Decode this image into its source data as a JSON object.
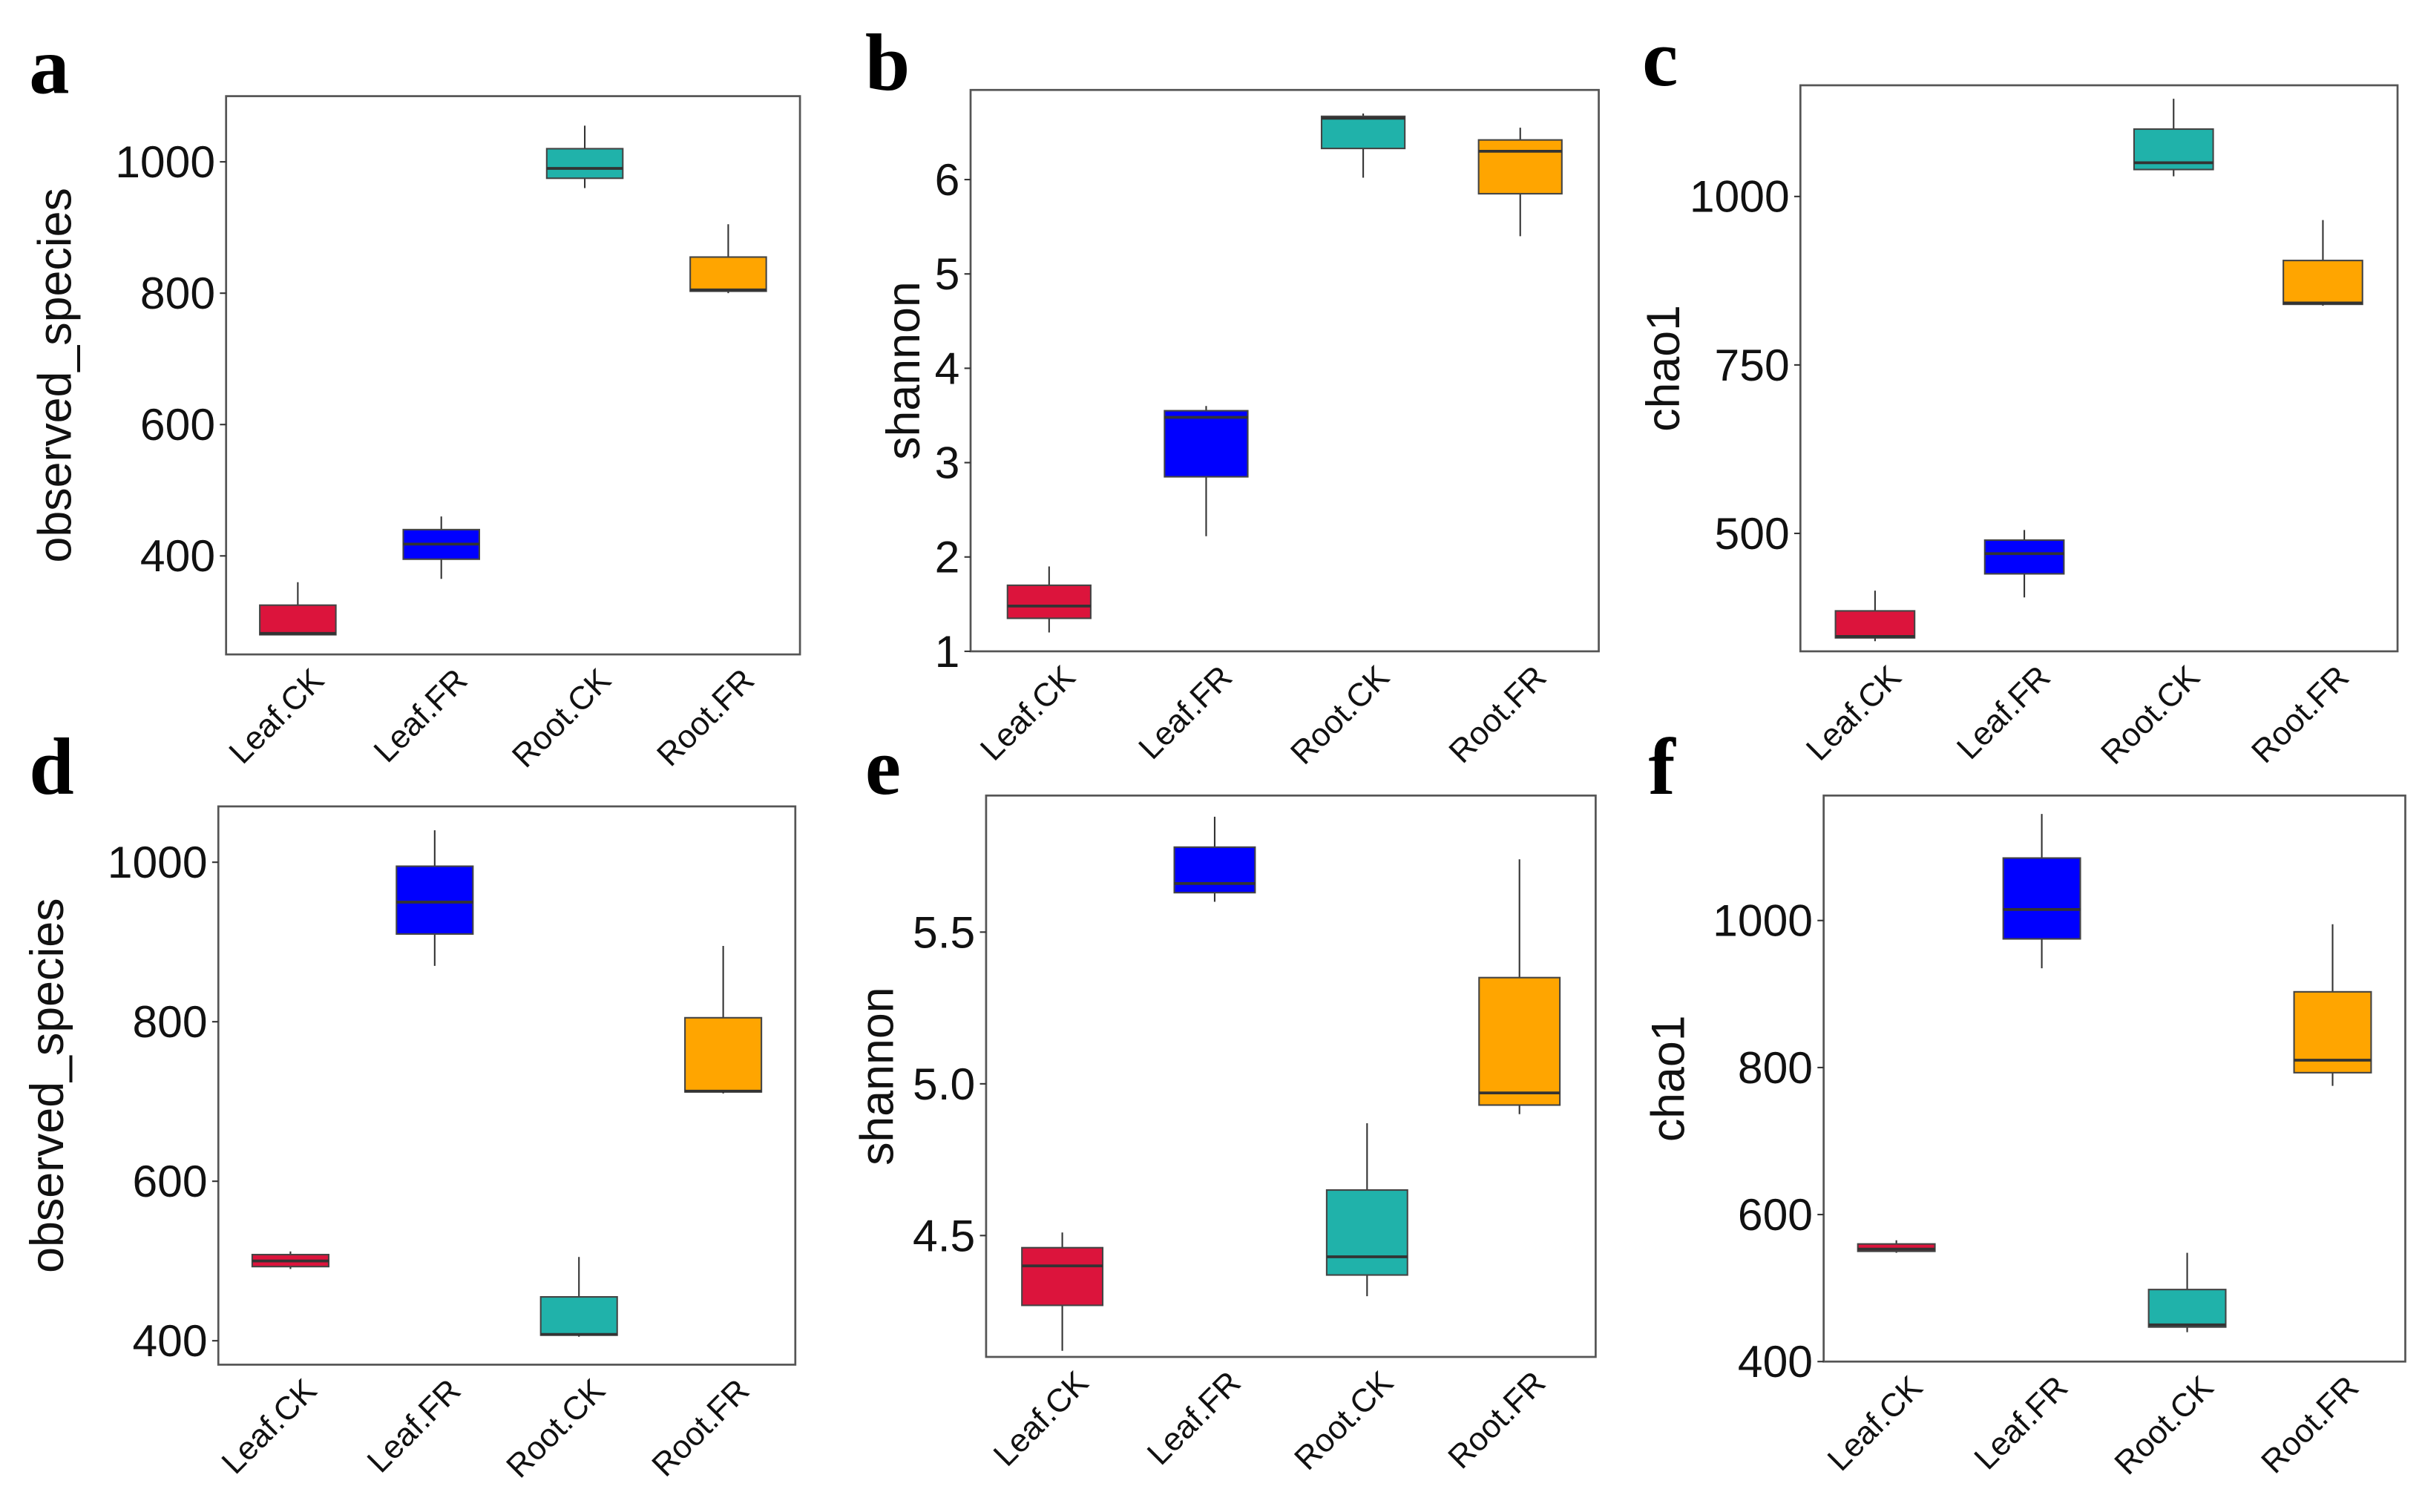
{
  "colors": {
    "Leaf.CK": "#dc143c",
    "Leaf.FR": "#0000ff",
    "Root.CK": "#20b2aa",
    "Root.FR": "#ffa500"
  },
  "chart_data": [
    {
      "type": "box",
      "panel": "a",
      "ylabel": "observed_species",
      "categories": [
        "Leaf.CK",
        "Leaf.FR",
        "Root.CK",
        "Root.FR"
      ],
      "ylim": [
        250,
        1100
      ],
      "yticks": [
        400,
        600,
        800,
        1000
      ],
      "boxes": [
        {
          "min": 280,
          "q1": 280,
          "median": 282,
          "q3": 325,
          "max": 360
        },
        {
          "min": 365,
          "q1": 395,
          "median": 418,
          "q3": 440,
          "max": 460
        },
        {
          "min": 960,
          "q1": 975,
          "median": 990,
          "q3": 1020,
          "max": 1055
        },
        {
          "min": 800,
          "q1": 803,
          "median": 805,
          "q3": 855,
          "max": 905
        }
      ]
    },
    {
      "type": "box",
      "panel": "b",
      "ylabel": "shannon",
      "categories": [
        "Leaf.CK",
        "Leaf.FR",
        "Root.CK",
        "Root.FR"
      ],
      "ylim": [
        1,
        6.95
      ],
      "yticks": [
        1,
        2,
        3,
        4,
        5,
        6
      ],
      "boxes": [
        {
          "min": 1.2,
          "q1": 1.35,
          "median": 1.48,
          "q3": 1.7,
          "max": 1.9
        },
        {
          "min": 2.22,
          "q1": 2.85,
          "median": 3.48,
          "q3": 3.55,
          "max": 3.6
        },
        {
          "min": 6.02,
          "q1": 6.33,
          "median": 6.65,
          "q3": 6.67,
          "max": 6.7
        },
        {
          "min": 5.4,
          "q1": 5.85,
          "median": 6.3,
          "q3": 6.42,
          "max": 6.55
        }
      ]
    },
    {
      "type": "box",
      "panel": "c",
      "ylabel": "chao1",
      "categories": [
        "Leaf.CK",
        "Leaf.FR",
        "Root.CK",
        "Root.FR"
      ],
      "ylim": [
        325,
        1165
      ],
      "yticks": [
        500,
        750,
        1000
      ],
      "boxes": [
        {
          "min": 340,
          "q1": 345,
          "median": 347,
          "q3": 385,
          "max": 415
        },
        {
          "min": 405,
          "q1": 440,
          "median": 470,
          "q3": 490,
          "max": 505
        },
        {
          "min": 1030,
          "q1": 1040,
          "median": 1050,
          "q3": 1100,
          "max": 1145
        },
        {
          "min": 838,
          "q1": 840,
          "median": 842,
          "q3": 905,
          "max": 965
        }
      ]
    },
    {
      "type": "box",
      "panel": "d",
      "ylabel": "observed_species",
      "categories": [
        "Leaf.CK",
        "Leaf.FR",
        "Root.CK",
        "Root.FR"
      ],
      "ylim": [
        370,
        1070
      ],
      "yticks": [
        400,
        600,
        800,
        1000
      ],
      "boxes": [
        {
          "min": 490,
          "q1": 493,
          "median": 500,
          "q3": 508,
          "max": 512
        },
        {
          "min": 870,
          "q1": 910,
          "median": 950,
          "q3": 995,
          "max": 1040
        },
        {
          "min": 405,
          "q1": 407,
          "median": 408,
          "q3": 455,
          "max": 505
        },
        {
          "min": 710,
          "q1": 712,
          "median": 713,
          "q3": 805,
          "max": 895
        }
      ]
    },
    {
      "type": "box",
      "panel": "e",
      "ylabel": "shannon",
      "categories": [
        "Leaf.CK",
        "Leaf.FR",
        "Root.CK",
        "Root.FR"
      ],
      "ylim": [
        4.1,
        5.95
      ],
      "yticks": [
        4.5,
        5.0,
        5.5
      ],
      "ytick_labels": [
        "4.5",
        "5.0",
        "5.5"
      ],
      "boxes": [
        {
          "min": 4.12,
          "q1": 4.27,
          "median": 4.4,
          "q3": 4.46,
          "max": 4.51
        },
        {
          "min": 5.6,
          "q1": 5.63,
          "median": 5.66,
          "q3": 5.78,
          "max": 5.88
        },
        {
          "min": 4.3,
          "q1": 4.37,
          "median": 4.43,
          "q3": 4.65,
          "max": 4.87
        },
        {
          "min": 4.9,
          "q1": 4.93,
          "median": 4.97,
          "q3": 5.35,
          "max": 5.74
        }
      ]
    },
    {
      "type": "box",
      "panel": "f",
      "ylabel": "chao1",
      "categories": [
        "Leaf.CK",
        "Leaf.FR",
        "Root.CK",
        "Root.FR"
      ],
      "ylim": [
        400,
        1170
      ],
      "yticks": [
        400,
        600,
        800,
        1000
      ],
      "boxes": [
        {
          "min": 548,
          "q1": 550,
          "median": 553,
          "q3": 560,
          "max": 565
        },
        {
          "min": 935,
          "q1": 975,
          "median": 1015,
          "q3": 1085,
          "max": 1145
        },
        {
          "min": 440,
          "q1": 447,
          "median": 450,
          "q3": 498,
          "max": 548
        },
        {
          "min": 775,
          "q1": 793,
          "median": 810,
          "q3": 903,
          "max": 995
        }
      ]
    }
  ]
}
